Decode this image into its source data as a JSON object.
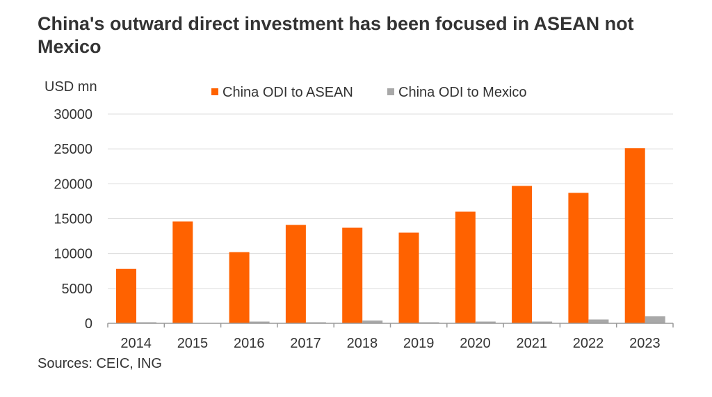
{
  "title": "China's outward direct investment has been focused in ASEAN not Mexico",
  "source": "Sources: CEIC, ING",
  "colors": {
    "asean": "#FF6200",
    "mexico": "#A8A8A8",
    "grid": "#DCDCDC",
    "axis": "#999999",
    "text": "#333333"
  },
  "chart_data": {
    "type": "bar",
    "ylabel": "USD mn",
    "xlabel": "",
    "ylim": [
      0,
      30000
    ],
    "yticks": [
      0,
      5000,
      10000,
      15000,
      20000,
      25000,
      30000
    ],
    "grid": true,
    "legend_position": "top",
    "categories": [
      "2014",
      "2015",
      "2016",
      "2017",
      "2018",
      "2019",
      "2020",
      "2021",
      "2022",
      "2023"
    ],
    "series": [
      {
        "name": "China ODI to ASEAN",
        "values": [
          7800,
          14600,
          10200,
          14100,
          13700,
          13000,
          16000,
          19700,
          18700,
          25100
        ]
      },
      {
        "name": "China ODI to Mexico",
        "values": [
          150,
          0,
          250,
          150,
          400,
          150,
          250,
          250,
          550,
          1000
        ]
      }
    ]
  }
}
